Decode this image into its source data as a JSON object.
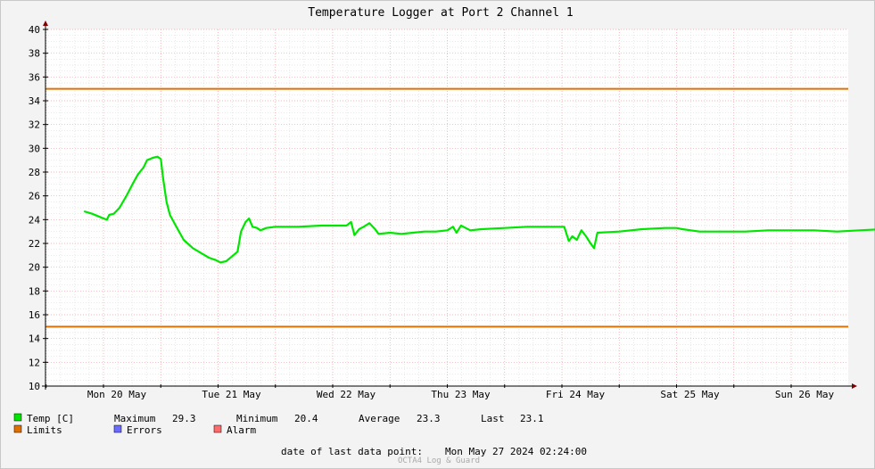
{
  "chart_data": {
    "type": "line",
    "title": "Temperature Logger at Port 2 Channel 1",
    "ylim": [
      10,
      40
    ],
    "y_ticks": [
      "10",
      "12",
      "14",
      "16",
      "18",
      "20",
      "22",
      "24",
      "26",
      "28",
      "30",
      "32",
      "34",
      "36",
      "38",
      "40"
    ],
    "x_ticks": [
      "Mon 20 May",
      "Tue 21 May",
      "Wed 22 May",
      "Thu 23 May",
      "Fri 24 May",
      "Sat 25 May",
      "Sun 26 May"
    ],
    "x_range_days": [
      0,
      7.03
    ],
    "grid": true,
    "series": [
      {
        "name": "Temp [C]",
        "color": "#00e600",
        "points": [
          [
            -0.17,
            24.7
          ],
          [
            -0.1,
            24.5
          ],
          [
            -0.05,
            24.3
          ],
          [
            0.0,
            24.1
          ],
          [
            0.03,
            24.0
          ],
          [
            0.05,
            24.4
          ],
          [
            0.09,
            24.5
          ],
          [
            0.14,
            25.0
          ],
          [
            0.2,
            26.0
          ],
          [
            0.26,
            27.1
          ],
          [
            0.3,
            27.8
          ],
          [
            0.35,
            28.4
          ],
          [
            0.38,
            29.0
          ],
          [
            0.43,
            29.2
          ],
          [
            0.47,
            29.3
          ],
          [
            0.5,
            29.1
          ],
          [
            0.52,
            27.5
          ],
          [
            0.55,
            25.5
          ],
          [
            0.58,
            24.4
          ],
          [
            0.63,
            23.5
          ],
          [
            0.7,
            22.3
          ],
          [
            0.78,
            21.6
          ],
          [
            0.85,
            21.2
          ],
          [
            0.92,
            20.8
          ],
          [
            0.98,
            20.6
          ],
          [
            1.02,
            20.4
          ],
          [
            1.07,
            20.5
          ],
          [
            1.12,
            20.9
          ],
          [
            1.17,
            21.3
          ],
          [
            1.2,
            23.0
          ],
          [
            1.24,
            23.8
          ],
          [
            1.27,
            24.1
          ],
          [
            1.3,
            23.4
          ],
          [
            1.34,
            23.3
          ],
          [
            1.37,
            23.1
          ],
          [
            1.42,
            23.3
          ],
          [
            1.5,
            23.4
          ],
          [
            1.7,
            23.4
          ],
          [
            1.9,
            23.5
          ],
          [
            2.0,
            23.5
          ],
          [
            2.12,
            23.5
          ],
          [
            2.16,
            23.8
          ],
          [
            2.19,
            22.7
          ],
          [
            2.23,
            23.2
          ],
          [
            2.27,
            23.4
          ],
          [
            2.32,
            23.7
          ],
          [
            2.37,
            23.2
          ],
          [
            2.4,
            22.8
          ],
          [
            2.5,
            22.9
          ],
          [
            2.6,
            22.8
          ],
          [
            2.7,
            22.9
          ],
          [
            2.8,
            23.0
          ],
          [
            2.9,
            23.0
          ],
          [
            3.0,
            23.1
          ],
          [
            3.05,
            23.4
          ],
          [
            3.08,
            22.9
          ],
          [
            3.12,
            23.5
          ],
          [
            3.16,
            23.3
          ],
          [
            3.2,
            23.1
          ],
          [
            3.3,
            23.2
          ],
          [
            3.5,
            23.3
          ],
          [
            3.7,
            23.4
          ],
          [
            3.9,
            23.4
          ],
          [
            4.02,
            23.4
          ],
          [
            4.06,
            22.2
          ],
          [
            4.09,
            22.6
          ],
          [
            4.13,
            22.3
          ],
          [
            4.17,
            23.1
          ],
          [
            4.21,
            22.6
          ],
          [
            4.25,
            22.0
          ],
          [
            4.28,
            21.6
          ],
          [
            4.31,
            22.9
          ],
          [
            4.5,
            23.0
          ],
          [
            4.7,
            23.2
          ],
          [
            4.9,
            23.3
          ],
          [
            5.0,
            23.3
          ],
          [
            5.05,
            23.2
          ],
          [
            5.2,
            23.0
          ],
          [
            5.4,
            23.0
          ],
          [
            5.6,
            23.0
          ],
          [
            5.8,
            23.1
          ],
          [
            6.0,
            23.1
          ],
          [
            6.2,
            23.1
          ],
          [
            6.4,
            23.0
          ],
          [
            6.6,
            23.1
          ],
          [
            6.8,
            23.2
          ],
          [
            6.95,
            23.2
          ],
          [
            7.0,
            23.1
          ]
        ]
      },
      {
        "name": "Limits",
        "color": "#e07000",
        "values": [
          35,
          15
        ]
      },
      {
        "name": "Errors",
        "color": "#6b6bff"
      },
      {
        "name": "Alarm",
        "color": "#ff6b6b"
      }
    ]
  },
  "stats": {
    "maximum_label": "Maximum",
    "maximum": "29.3",
    "minimum_label": "Minimum",
    "minimum": "20.4",
    "average_label": "Average",
    "average": "23.3",
    "last_label": "Last",
    "last": "23.1"
  },
  "footer": {
    "last_point_label": "date of last data point:",
    "last_point_value": "Mon May 27 2024 02:24:00",
    "credit": "OCTA4 Log & Guard"
  }
}
